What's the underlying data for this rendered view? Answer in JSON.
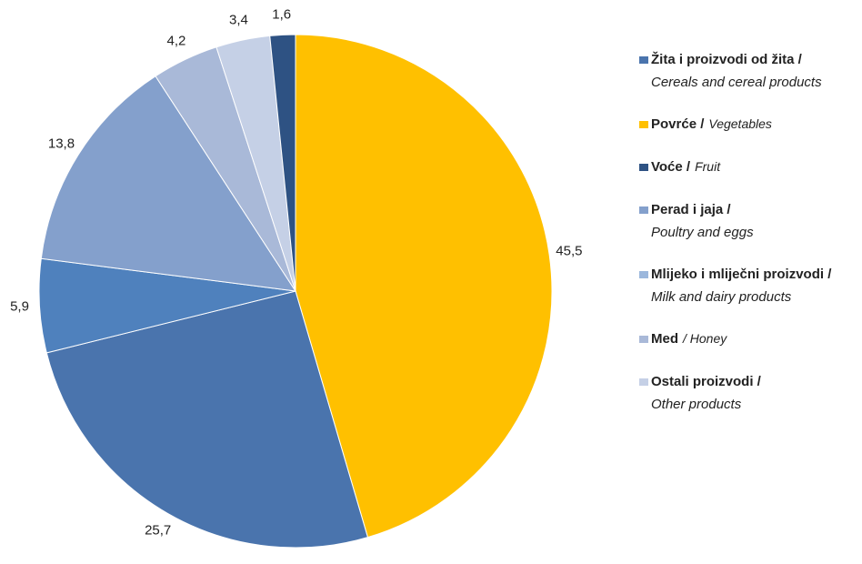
{
  "chart_data": {
    "type": "pie",
    "values": [
      45.5,
      25.7,
      5.9,
      13.8,
      4.2,
      3.4,
      1.6
    ],
    "value_labels": [
      "45,5",
      "25,7",
      "5,9",
      "13,8",
      "4,2",
      "3,4",
      "1,6"
    ],
    "colors": [
      "#ffc000",
      "#4a74ad",
      "#4f81bd",
      "#84a0cc",
      "#a9b9d8",
      "#c5d0e6",
      "#2e5283"
    ],
    "legend": [
      {
        "hr": "Žita i proizvodi od žita /",
        "en": "Cereals and cereal products",
        "color": "#4a74ad",
        "inline": false
      },
      {
        "hr": "Povrće /",
        "en": "Vegetables",
        "color": "#ffc000",
        "inline": true
      },
      {
        "hr": "Voće /",
        "en": "Fruit",
        "color": "#2e5283",
        "inline": true
      },
      {
        "hr": "Perad i jaja /",
        "en": "Poultry and eggs",
        "color": "#84a0cc",
        "inline": false
      },
      {
        "hr": "Mlijeko i mliječni proizvodi /",
        "en": "Milk and dairy products",
        "color": "#9bb7dc",
        "inline": false
      },
      {
        "hr": "Med",
        "en": "/ Honey",
        "color": "#a9b9d8",
        "inline": true
      },
      {
        "hr": "Ostali proizvodi /",
        "en": "Other products",
        "color": "#c5d0e6",
        "inline": false
      }
    ]
  }
}
